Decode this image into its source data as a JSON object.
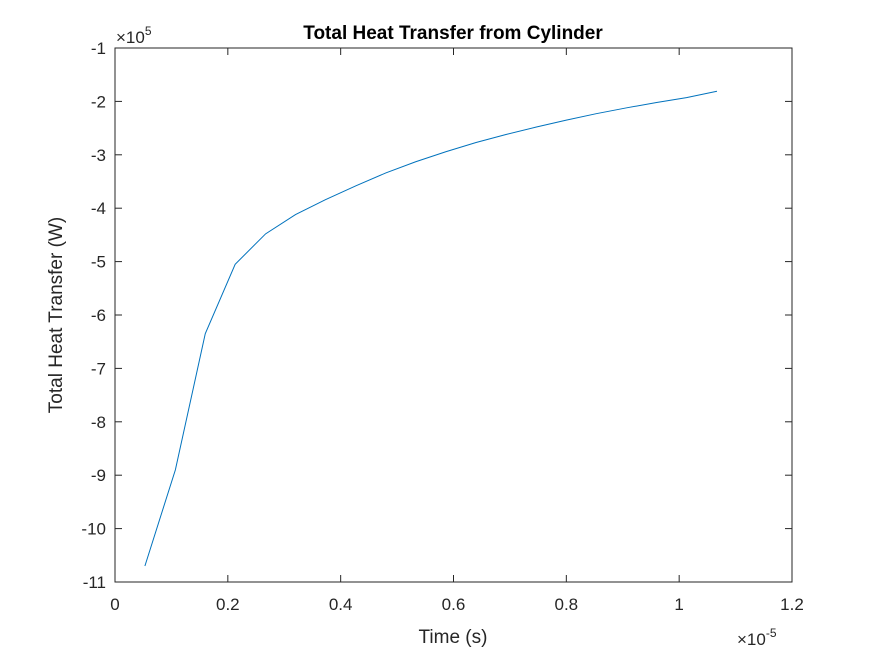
{
  "chart_data": {
    "type": "line",
    "title": "Total Heat Transfer from Cylinder",
    "xlabel": "Time (s)",
    "ylabel": "Total Heat Transfer (W)",
    "xlim": [
      0,
      1.2e-05
    ],
    "ylim": [
      -1100000.0,
      -100000.0
    ],
    "x_ticks": [
      0,
      0.2,
      0.4,
      0.6,
      0.8,
      1,
      1.2
    ],
    "y_ticks": [
      -1,
      -2,
      -3,
      -4,
      -5,
      -6,
      -7,
      -8,
      -9,
      -10,
      -11
    ],
    "x_exponent": {
      "base": "×10",
      "power": "-5"
    },
    "y_exponent": {
      "base": "×10",
      "power": "5"
    },
    "grid": false,
    "line_color": "#0072BD",
    "series": [
      {
        "x": [
          5.3e-07,
          1.07e-06,
          1.6e-06,
          2.13e-06,
          2.67e-06,
          3.2e-06,
          3.73e-06,
          4.27e-06,
          4.8e-06,
          5.33e-06,
          5.87e-06,
          6.4e-06,
          6.93e-06,
          7.47e-06,
          8e-06,
          8.53e-06,
          9.07e-06,
          9.6e-06,
          1.013e-05,
          1.067e-05
        ],
        "y": [
          -1070000.0,
          -890000.0,
          -635000.0,
          -505000.0,
          -448000.0,
          -412000.0,
          -384000.0,
          -358000.0,
          -334000.0,
          -313000.0,
          -294000.0,
          -277000.0,
          -262000.0,
          -248000.0,
          -235000.0,
          -223000.0,
          -212000.0,
          -202000.0,
          -193000.0,
          -181000.0
        ]
      }
    ]
  }
}
